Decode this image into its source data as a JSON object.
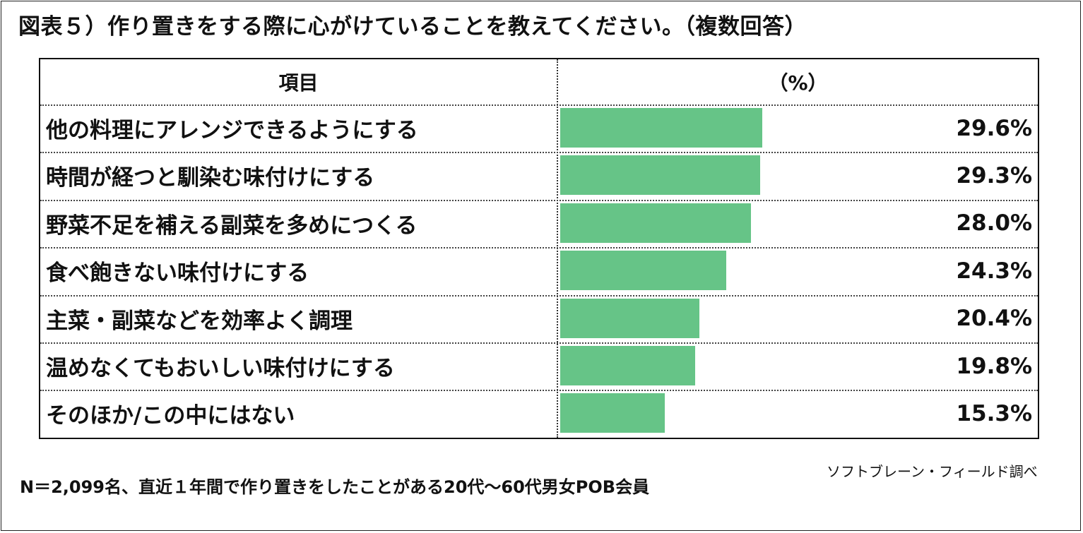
{
  "title": "図表５）作り置きをする際に心がけていることを教えてください。（複数回答）",
  "table_header": {
    "item": "項目",
    "percent": "（%）"
  },
  "chart_data": {
    "type": "bar",
    "orientation": "horizontal",
    "title": "図表５）作り置きをする際に心がけていることを教えてください。（複数回答）",
    "categories": [
      "他の料理にアレンジできるようにする",
      "時間が経つと馴染む味付けにする",
      "野菜不足を補える副菜を多めにつくる",
      "食べ飽きない味付けにする",
      "主菜・副菜などを効率よく調理",
      "温めなくてもおいしい味付けにする",
      "そのほか/この中にはない"
    ],
    "values": [
      29.6,
      29.3,
      28.0,
      24.3,
      20.4,
      19.8,
      15.3
    ],
    "value_labels": [
      "29.6%",
      "29.3%",
      "28.0%",
      "24.3%",
      "20.4%",
      "19.8%",
      "15.3%"
    ],
    "xlim": [
      0,
      70
    ],
    "bar_color": "#66c487",
    "grid": false
  },
  "source": "ソフトブレーン・フィールド調べ",
  "footnote": "N＝2,099名、直近１年間で作り置きをしたことがある20代～60代男女POB会員"
}
